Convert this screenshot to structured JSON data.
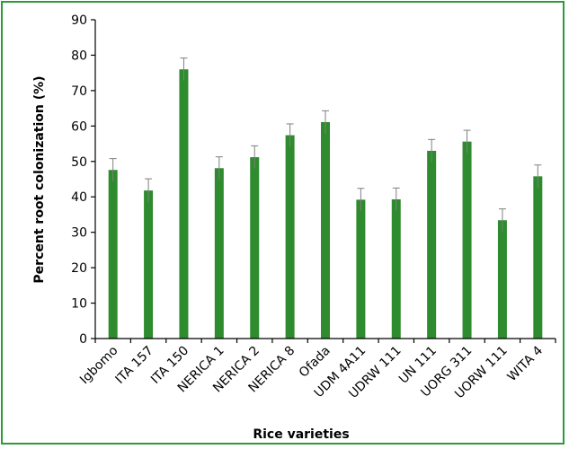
{
  "chart_data": {
    "type": "bar",
    "title": "",
    "xlabel": "Rice varieties",
    "ylabel": "Percent root colonization (%)",
    "ylim": [
      0,
      90
    ],
    "yticks": [
      0,
      10,
      20,
      30,
      40,
      50,
      60,
      70,
      80,
      90
    ],
    "categories": [
      "Igbomo",
      "ITA 157",
      "ITA 150",
      "NERICA 1",
      "NERICA 2",
      "NERICA 8",
      "Ofada",
      "UDM 4A11",
      "UDRW 111",
      "UN 111",
      "UORG 311",
      "UORW 111",
      "WITA 4"
    ],
    "values": [
      47.6,
      41.8,
      76.0,
      48.1,
      51.2,
      57.4,
      61.1,
      39.2,
      39.3,
      53.0,
      55.6,
      33.4,
      45.8
    ],
    "errors": [
      3.2,
      3.3,
      3.2,
      3.2,
      3.2,
      3.2,
      3.2,
      3.2,
      3.2,
      3.2,
      3.2,
      3.2,
      3.2
    ],
    "bar_color": "#2e8b2e",
    "error_bar_color": "#7f7f7f",
    "border_color": "#2e9a3a",
    "grid": false,
    "legend": "none"
  }
}
